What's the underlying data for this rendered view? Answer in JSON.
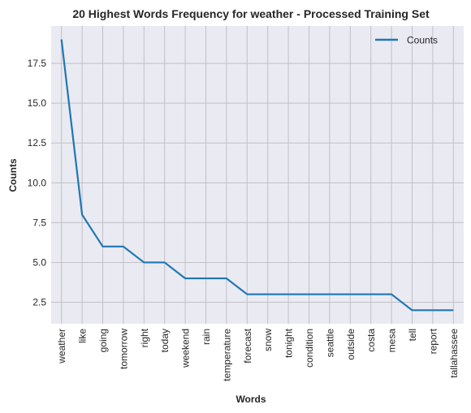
{
  "chart_data": {
    "type": "line",
    "title": "20 Highest Words Frequency for weather - Processed Training Set",
    "xlabel": "Words",
    "ylabel": "Counts",
    "categories": [
      "weather",
      "like",
      "going",
      "tomorrow",
      "right",
      "today",
      "weekend",
      "rain",
      "temperature",
      "forecast",
      "snow",
      "tonight",
      "condition",
      "seattle",
      "outside",
      "costa",
      "mesa",
      "tell",
      "report",
      "tallahassee"
    ],
    "series": [
      {
        "name": "Counts",
        "color": "#1f77b4",
        "values": [
          19,
          8,
          6,
          6,
          5,
          5,
          4,
          4,
          4,
          3,
          3,
          3,
          3,
          3,
          3,
          3,
          3,
          2,
          2,
          2
        ]
      }
    ],
    "ylim": [
      1.15,
      19.85
    ],
    "yticks": [
      "2.5",
      "5.0",
      "7.5",
      "10.0",
      "12.5",
      "15.0",
      "17.5"
    ],
    "grid": true,
    "legend": "top-right"
  }
}
